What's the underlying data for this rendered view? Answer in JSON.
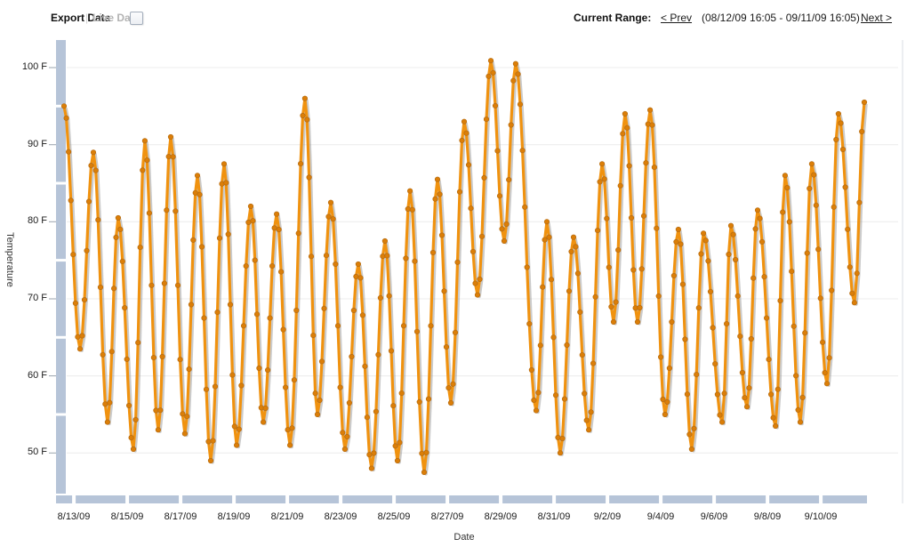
{
  "header": {
    "export_label": "Export Data",
    "separator": "|",
    "live_data_label": "Live Data",
    "current_range_label": "Current Range:",
    "prev_label": "< Prev",
    "range_text": "(08/12/09 16:05 - 09/11/09 16:05)",
    "next_label": "Next >"
  },
  "chart_data": {
    "type": "line",
    "title": "",
    "xlabel": "Date",
    "ylabel": "Temperature",
    "unit": "F",
    "x_range": "08/12/09 16:05 - 09/11/09 16:05",
    "xlim_days": [
      0,
      30
    ],
    "ylim": [
      45,
      102
    ],
    "grid": "horizontal, light gray, every 10 F",
    "legend": "none",
    "y_ticks": [
      {
        "label": "100 F",
        "value": 100
      },
      {
        "label": "90 F",
        "value": 90
      },
      {
        "label": "80 F",
        "value": 80
      },
      {
        "label": "70 F",
        "value": 70
      },
      {
        "label": "60 F",
        "value": 60
      },
      {
        "label": "50 F",
        "value": 50
      }
    ],
    "x_ticks": [
      {
        "label": "8/13/09",
        "t": 0.37
      },
      {
        "label": "8/15/09",
        "t": 2.37
      },
      {
        "label": "8/17/09",
        "t": 4.37
      },
      {
        "label": "8/19/09",
        "t": 6.37
      },
      {
        "label": "8/21/09",
        "t": 8.37
      },
      {
        "label": "8/23/09",
        "t": 10.37
      },
      {
        "label": "8/25/09",
        "t": 12.37
      },
      {
        "label": "8/27/09",
        "t": 14.37
      },
      {
        "label": "8/29/09",
        "t": 16.37
      },
      {
        "label": "8/31/09",
        "t": 18.37
      },
      {
        "label": "9/2/09",
        "t": 20.37
      },
      {
        "label": "9/4/09",
        "t": 22.37
      },
      {
        "label": "9/6/09",
        "t": 24.37
      },
      {
        "label": "9/8/09",
        "t": 26.37
      },
      {
        "label": "9/10/09",
        "t": 28.37
      }
    ],
    "series": [
      {
        "name": "Temperature",
        "color": "#F0920F",
        "marker_color": "#DB7E08",
        "marker_edge": "#B96E12",
        "shadow_color": "#8C8C8C",
        "points_format": "[days_after_08/12/09_16:05, temp_F] — daily max/min extremes read from plot",
        "samples_per_day": 12,
        "interpolation": "cosine",
        "points": [
          [
            0.0,
            95.0
          ],
          [
            0.6,
            63.5
          ],
          [
            1.1,
            89.0
          ],
          [
            1.63,
            54.0
          ],
          [
            2.03,
            80.5
          ],
          [
            2.6,
            50.5
          ],
          [
            3.03,
            90.5
          ],
          [
            3.53,
            53.0
          ],
          [
            4.0,
            91.0
          ],
          [
            4.53,
            52.5
          ],
          [
            5.0,
            86.0
          ],
          [
            5.5,
            49.0
          ],
          [
            6.0,
            87.5
          ],
          [
            6.47,
            51.0
          ],
          [
            7.0,
            82.0
          ],
          [
            7.47,
            54.0
          ],
          [
            7.97,
            81.0
          ],
          [
            8.47,
            51.0
          ],
          [
            9.03,
            96.0
          ],
          [
            9.5,
            55.0
          ],
          [
            10.0,
            82.5
          ],
          [
            10.53,
            50.5
          ],
          [
            11.03,
            74.5
          ],
          [
            11.53,
            48.0
          ],
          [
            12.03,
            77.5
          ],
          [
            12.5,
            49.0
          ],
          [
            12.97,
            84.0
          ],
          [
            13.5,
            47.5
          ],
          [
            14.0,
            85.5
          ],
          [
            14.5,
            56.5
          ],
          [
            15.0,
            93.0
          ],
          [
            15.5,
            70.5
          ],
          [
            16.0,
            100.9
          ],
          [
            16.5,
            77.5
          ],
          [
            16.93,
            100.5
          ],
          [
            17.7,
            55.5
          ],
          [
            18.1,
            80.0
          ],
          [
            18.6,
            50.0
          ],
          [
            19.1,
            78.0
          ],
          [
            19.67,
            53.0
          ],
          [
            20.17,
            87.5
          ],
          [
            20.6,
            67.0
          ],
          [
            21.03,
            94.0
          ],
          [
            21.5,
            67.0
          ],
          [
            21.97,
            94.5
          ],
          [
            22.53,
            55.0
          ],
          [
            23.03,
            79.0
          ],
          [
            23.53,
            50.5
          ],
          [
            23.97,
            78.5
          ],
          [
            24.67,
            54.0
          ],
          [
            25.0,
            79.5
          ],
          [
            25.6,
            56.0
          ],
          [
            26.0,
            81.5
          ],
          [
            26.67,
            53.5
          ],
          [
            27.03,
            86.0
          ],
          [
            27.6,
            54.0
          ],
          [
            28.03,
            87.5
          ],
          [
            28.6,
            59.0
          ],
          [
            29.03,
            94.0
          ],
          [
            29.63,
            69.5
          ],
          [
            30.0,
            95.5
          ]
        ]
      }
    ],
    "colors": {
      "axis_band": "#B6C4D8",
      "gridline": "#ECECEC",
      "right_border": "#D8DCE3",
      "tick_dash": "#9AA3AD"
    }
  }
}
